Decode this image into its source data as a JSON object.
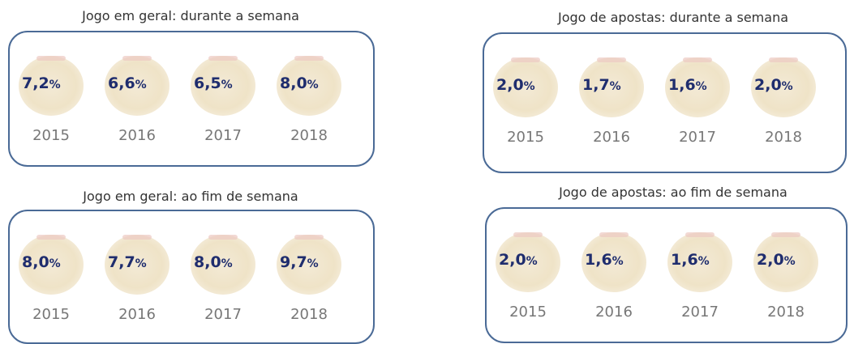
{
  "panels": [
    {
      "title": "Jogo em geral: durante a semana",
      "items": [
        {
          "value": "7,2",
          "unit": "%",
          "year": "2015"
        },
        {
          "value": "6,6",
          "unit": "%",
          "year": "2016"
        },
        {
          "value": "6,5",
          "unit": "%",
          "year": "2017"
        },
        {
          "value": "8,0",
          "unit": "%",
          "year": "2018"
        }
      ]
    },
    {
      "title": "Jogo de apostas: durante a semana",
      "items": [
        {
          "value": "2,0",
          "unit": "%",
          "year": "2015"
        },
        {
          "value": "1,7",
          "unit": "%",
          "year": "2016"
        },
        {
          "value": "1,6",
          "unit": "%",
          "year": "2017"
        },
        {
          "value": "2,0",
          "unit": "%",
          "year": "2018"
        }
      ]
    },
    {
      "title": "Jogo em geral: ao fim de semana",
      "items": [
        {
          "value": "8,0",
          "unit": "%",
          "year": "2015"
        },
        {
          "value": "7,7",
          "unit": "%",
          "year": "2016"
        },
        {
          "value": "8,0",
          "unit": "%",
          "year": "2017"
        },
        {
          "value": "9,7",
          "unit": "%",
          "year": "2018"
        }
      ]
    },
    {
      "title": "Jogo de apostas: ao fim de semana",
      "items": [
        {
          "value": "2,0",
          "unit": "%",
          "year": "2015"
        },
        {
          "value": "1,6",
          "unit": "%",
          "year": "2016"
        },
        {
          "value": "1,6",
          "unit": "%",
          "year": "2017"
        },
        {
          "value": "2,0",
          "unit": "%",
          "year": "2018"
        }
      ]
    }
  ]
}
